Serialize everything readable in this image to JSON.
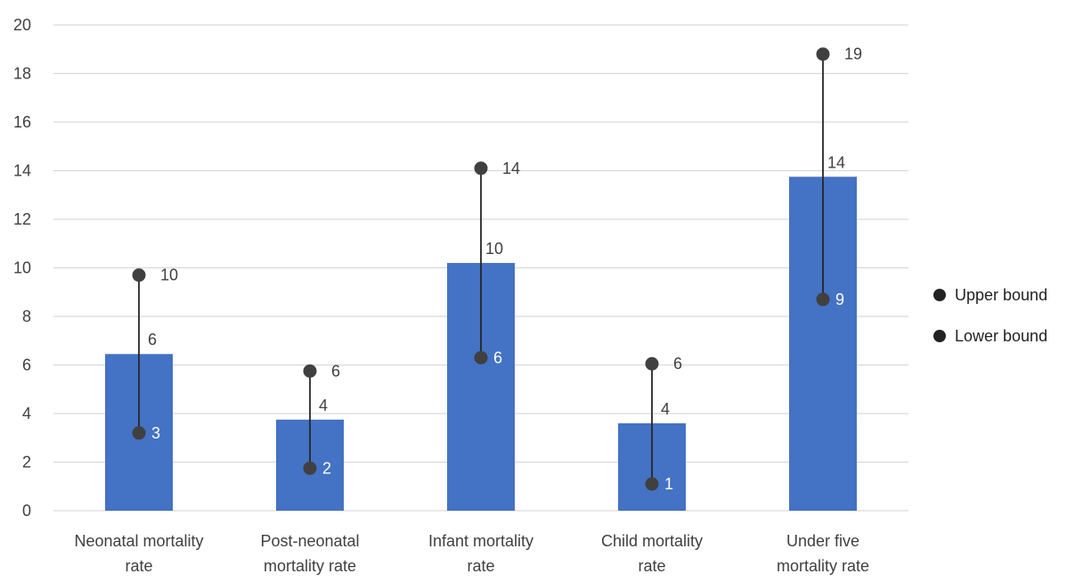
{
  "chart_data": {
    "type": "bar",
    "categories": [
      [
        "Neonatal mortality",
        "rate"
      ],
      [
        "Post-neonatal",
        "mortality rate"
      ],
      [
        "Infant mortality",
        "rate"
      ],
      [
        "Child mortality",
        "rate"
      ],
      [
        "Under five",
        "mortality rate"
      ]
    ],
    "values": [
      6.45,
      3.75,
      10.2,
      3.6,
      13.75
    ],
    "value_labels": [
      "6",
      "4",
      "10",
      "4",
      "14"
    ],
    "upper_bound": {
      "name": "Upper bound",
      "values": [
        9.7,
        5.75,
        14.1,
        6.05,
        18.8
      ],
      "labels": [
        "10",
        "6",
        "14",
        "6",
        "19"
      ]
    },
    "lower_bound": {
      "name": "Lower bound",
      "values": [
        3.2,
        1.75,
        6.3,
        1.1,
        8.7
      ],
      "labels": [
        "3",
        "2",
        "6",
        "1",
        "9"
      ]
    },
    "ylim": [
      0,
      20
    ],
    "yticks": [
      "0",
      "2",
      "4",
      "6",
      "8",
      "10",
      "12",
      "14",
      "16",
      "18",
      "20"
    ],
    "grid": true,
    "legend_position": "right",
    "colors": {
      "bar": "#4472c4",
      "marker": "#404040",
      "grid": "#d9d9d9",
      "text": "#404040"
    }
  },
  "legend": {
    "upper": "Upper bound",
    "lower": "Lower bound"
  }
}
